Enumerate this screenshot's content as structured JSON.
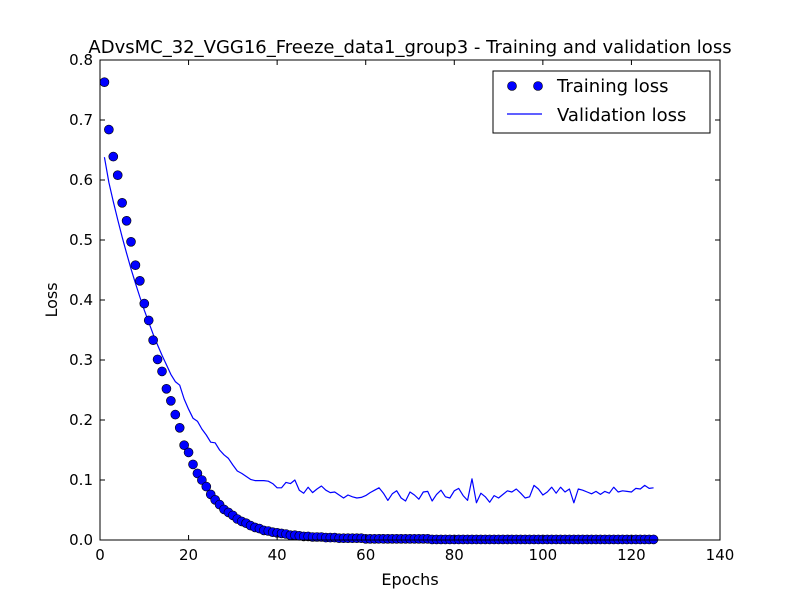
{
  "chart_data": {
    "type": "line",
    "title": "ADvsMC_32_VGG16_Freeze_data1_group3 - Training and validation loss",
    "xlabel": "Epochs",
    "ylabel": "Loss",
    "xlim": [
      0,
      140
    ],
    "ylim": [
      0.0,
      0.8
    ],
    "xticks": [
      0,
      20,
      40,
      60,
      80,
      100,
      120,
      140
    ],
    "yticks": [
      0.0,
      0.1,
      0.2,
      0.3,
      0.4,
      0.5,
      0.6,
      0.7,
      0.8
    ],
    "xtick_labels": [
      "0",
      "20",
      "40",
      "60",
      "80",
      "100",
      "120",
      "140"
    ],
    "ytick_labels": [
      "0.0",
      "0.1",
      "0.2",
      "0.3",
      "0.4",
      "0.5",
      "0.6",
      "0.7",
      "0.8"
    ],
    "grid": false,
    "legend_position": "top-right",
    "colors": {
      "series": "#0000ff"
    },
    "series": [
      {
        "name": "Training loss",
        "style": "markers",
        "x": [
          1,
          2,
          3,
          4,
          5,
          6,
          7,
          8,
          9,
          10,
          11,
          12,
          13,
          14,
          15,
          16,
          17,
          18,
          19,
          20,
          21,
          22,
          23,
          24,
          25,
          26,
          27,
          28,
          29,
          30,
          31,
          32,
          33,
          34,
          35,
          36,
          37,
          38,
          39,
          40,
          41,
          42,
          43,
          44,
          45,
          46,
          47,
          48,
          49,
          50,
          51,
          52,
          53,
          54,
          55,
          56,
          57,
          58,
          59,
          60,
          61,
          62,
          63,
          64,
          65,
          66,
          67,
          68,
          69,
          70,
          71,
          72,
          73,
          74,
          75,
          76,
          77,
          78,
          79,
          80,
          81,
          82,
          83,
          84,
          85,
          86,
          87,
          88,
          89,
          90,
          91,
          92,
          93,
          94,
          95,
          96,
          97,
          98,
          99,
          100,
          101,
          102,
          103,
          104,
          105,
          106,
          107,
          108,
          109,
          110,
          111,
          112,
          113,
          114,
          115,
          116,
          117,
          118,
          119,
          120,
          121,
          122,
          123,
          124,
          125
        ],
        "values": [
          0.763,
          0.684,
          0.639,
          0.608,
          0.562,
          0.532,
          0.497,
          0.458,
          0.432,
          0.394,
          0.366,
          0.333,
          0.301,
          0.281,
          0.252,
          0.232,
          0.209,
          0.187,
          0.158,
          0.146,
          0.126,
          0.111,
          0.1,
          0.089,
          0.076,
          0.067,
          0.059,
          0.051,
          0.046,
          0.041,
          0.035,
          0.031,
          0.028,
          0.024,
          0.021,
          0.019,
          0.016,
          0.015,
          0.013,
          0.012,
          0.011,
          0.01,
          0.008,
          0.008,
          0.007,
          0.006,
          0.006,
          0.005,
          0.005,
          0.005,
          0.004,
          0.004,
          0.004,
          0.003,
          0.003,
          0.003,
          0.003,
          0.003,
          0.003,
          0.002,
          0.002,
          0.002,
          0.002,
          0.002,
          0.002,
          0.002,
          0.002,
          0.002,
          0.002,
          0.002,
          0.002,
          0.002,
          0.002,
          0.002,
          0.001,
          0.001,
          0.001,
          0.001,
          0.001,
          0.001,
          0.001,
          0.001,
          0.001,
          0.001,
          0.001,
          0.001,
          0.001,
          0.001,
          0.001,
          0.001,
          0.001,
          0.001,
          0.001,
          0.001,
          0.001,
          0.001,
          0.001,
          0.001,
          0.001,
          0.001,
          0.001,
          0.001,
          0.001,
          0.001,
          0.001,
          0.001,
          0.001,
          0.001,
          0.001,
          0.001,
          0.001,
          0.001,
          0.001,
          0.001,
          0.001,
          0.001,
          0.001,
          0.001,
          0.001,
          0.001,
          0.001,
          0.001,
          0.001,
          0.001,
          0.001
        ]
      },
      {
        "name": "Validation loss",
        "style": "line",
        "x": [
          1,
          2,
          3,
          4,
          5,
          6,
          7,
          8,
          9,
          10,
          11,
          12,
          13,
          14,
          15,
          16,
          17,
          18,
          19,
          20,
          21,
          22,
          23,
          24,
          25,
          26,
          27,
          28,
          29,
          30,
          31,
          32,
          33,
          34,
          35,
          36,
          37,
          38,
          39,
          40,
          41,
          42,
          43,
          44,
          45,
          46,
          47,
          48,
          49,
          50,
          51,
          52,
          53,
          54,
          55,
          56,
          57,
          58,
          59,
          60,
          61,
          62,
          63,
          64,
          65,
          66,
          67,
          68,
          69,
          70,
          71,
          72,
          73,
          74,
          75,
          76,
          77,
          78,
          79,
          80,
          81,
          82,
          83,
          84,
          85,
          86,
          87,
          88,
          89,
          90,
          91,
          92,
          93,
          94,
          95,
          96,
          97,
          98,
          99,
          100,
          101,
          102,
          103,
          104,
          105,
          106,
          107,
          108,
          109,
          110,
          111,
          112,
          113,
          114,
          115,
          116,
          117,
          118,
          119,
          120,
          121,
          122,
          123,
          124,
          125
        ],
        "values": [
          0.638,
          0.596,
          0.564,
          0.534,
          0.505,
          0.478,
          0.452,
          0.428,
          0.405,
          0.383,
          0.363,
          0.343,
          0.325,
          0.308,
          0.292,
          0.276,
          0.264,
          0.258,
          0.235,
          0.218,
          0.203,
          0.198,
          0.185,
          0.175,
          0.163,
          0.162,
          0.15,
          0.142,
          0.136,
          0.125,
          0.115,
          0.111,
          0.106,
          0.101,
          0.099,
          0.099,
          0.099,
          0.098,
          0.094,
          0.087,
          0.087,
          0.096,
          0.094,
          0.1,
          0.083,
          0.078,
          0.088,
          0.079,
          0.085,
          0.09,
          0.083,
          0.079,
          0.08,
          0.075,
          0.07,
          0.075,
          0.072,
          0.07,
          0.071,
          0.074,
          0.079,
          0.083,
          0.087,
          0.078,
          0.066,
          0.077,
          0.082,
          0.07,
          0.065,
          0.08,
          0.075,
          0.068,
          0.08,
          0.081,
          0.065,
          0.076,
          0.083,
          0.072,
          0.07,
          0.082,
          0.086,
          0.074,
          0.066,
          0.102,
          0.062,
          0.078,
          0.072,
          0.063,
          0.074,
          0.07,
          0.076,
          0.082,
          0.08,
          0.085,
          0.078,
          0.07,
          0.072,
          0.091,
          0.085,
          0.075,
          0.08,
          0.088,
          0.078,
          0.088,
          0.08,
          0.085,
          0.062,
          0.085,
          0.083,
          0.08,
          0.077,
          0.081,
          0.076,
          0.081,
          0.078,
          0.088,
          0.08,
          0.082,
          0.081,
          0.08,
          0.086,
          0.085,
          0.091,
          0.086,
          0.087
        ]
      }
    ]
  }
}
